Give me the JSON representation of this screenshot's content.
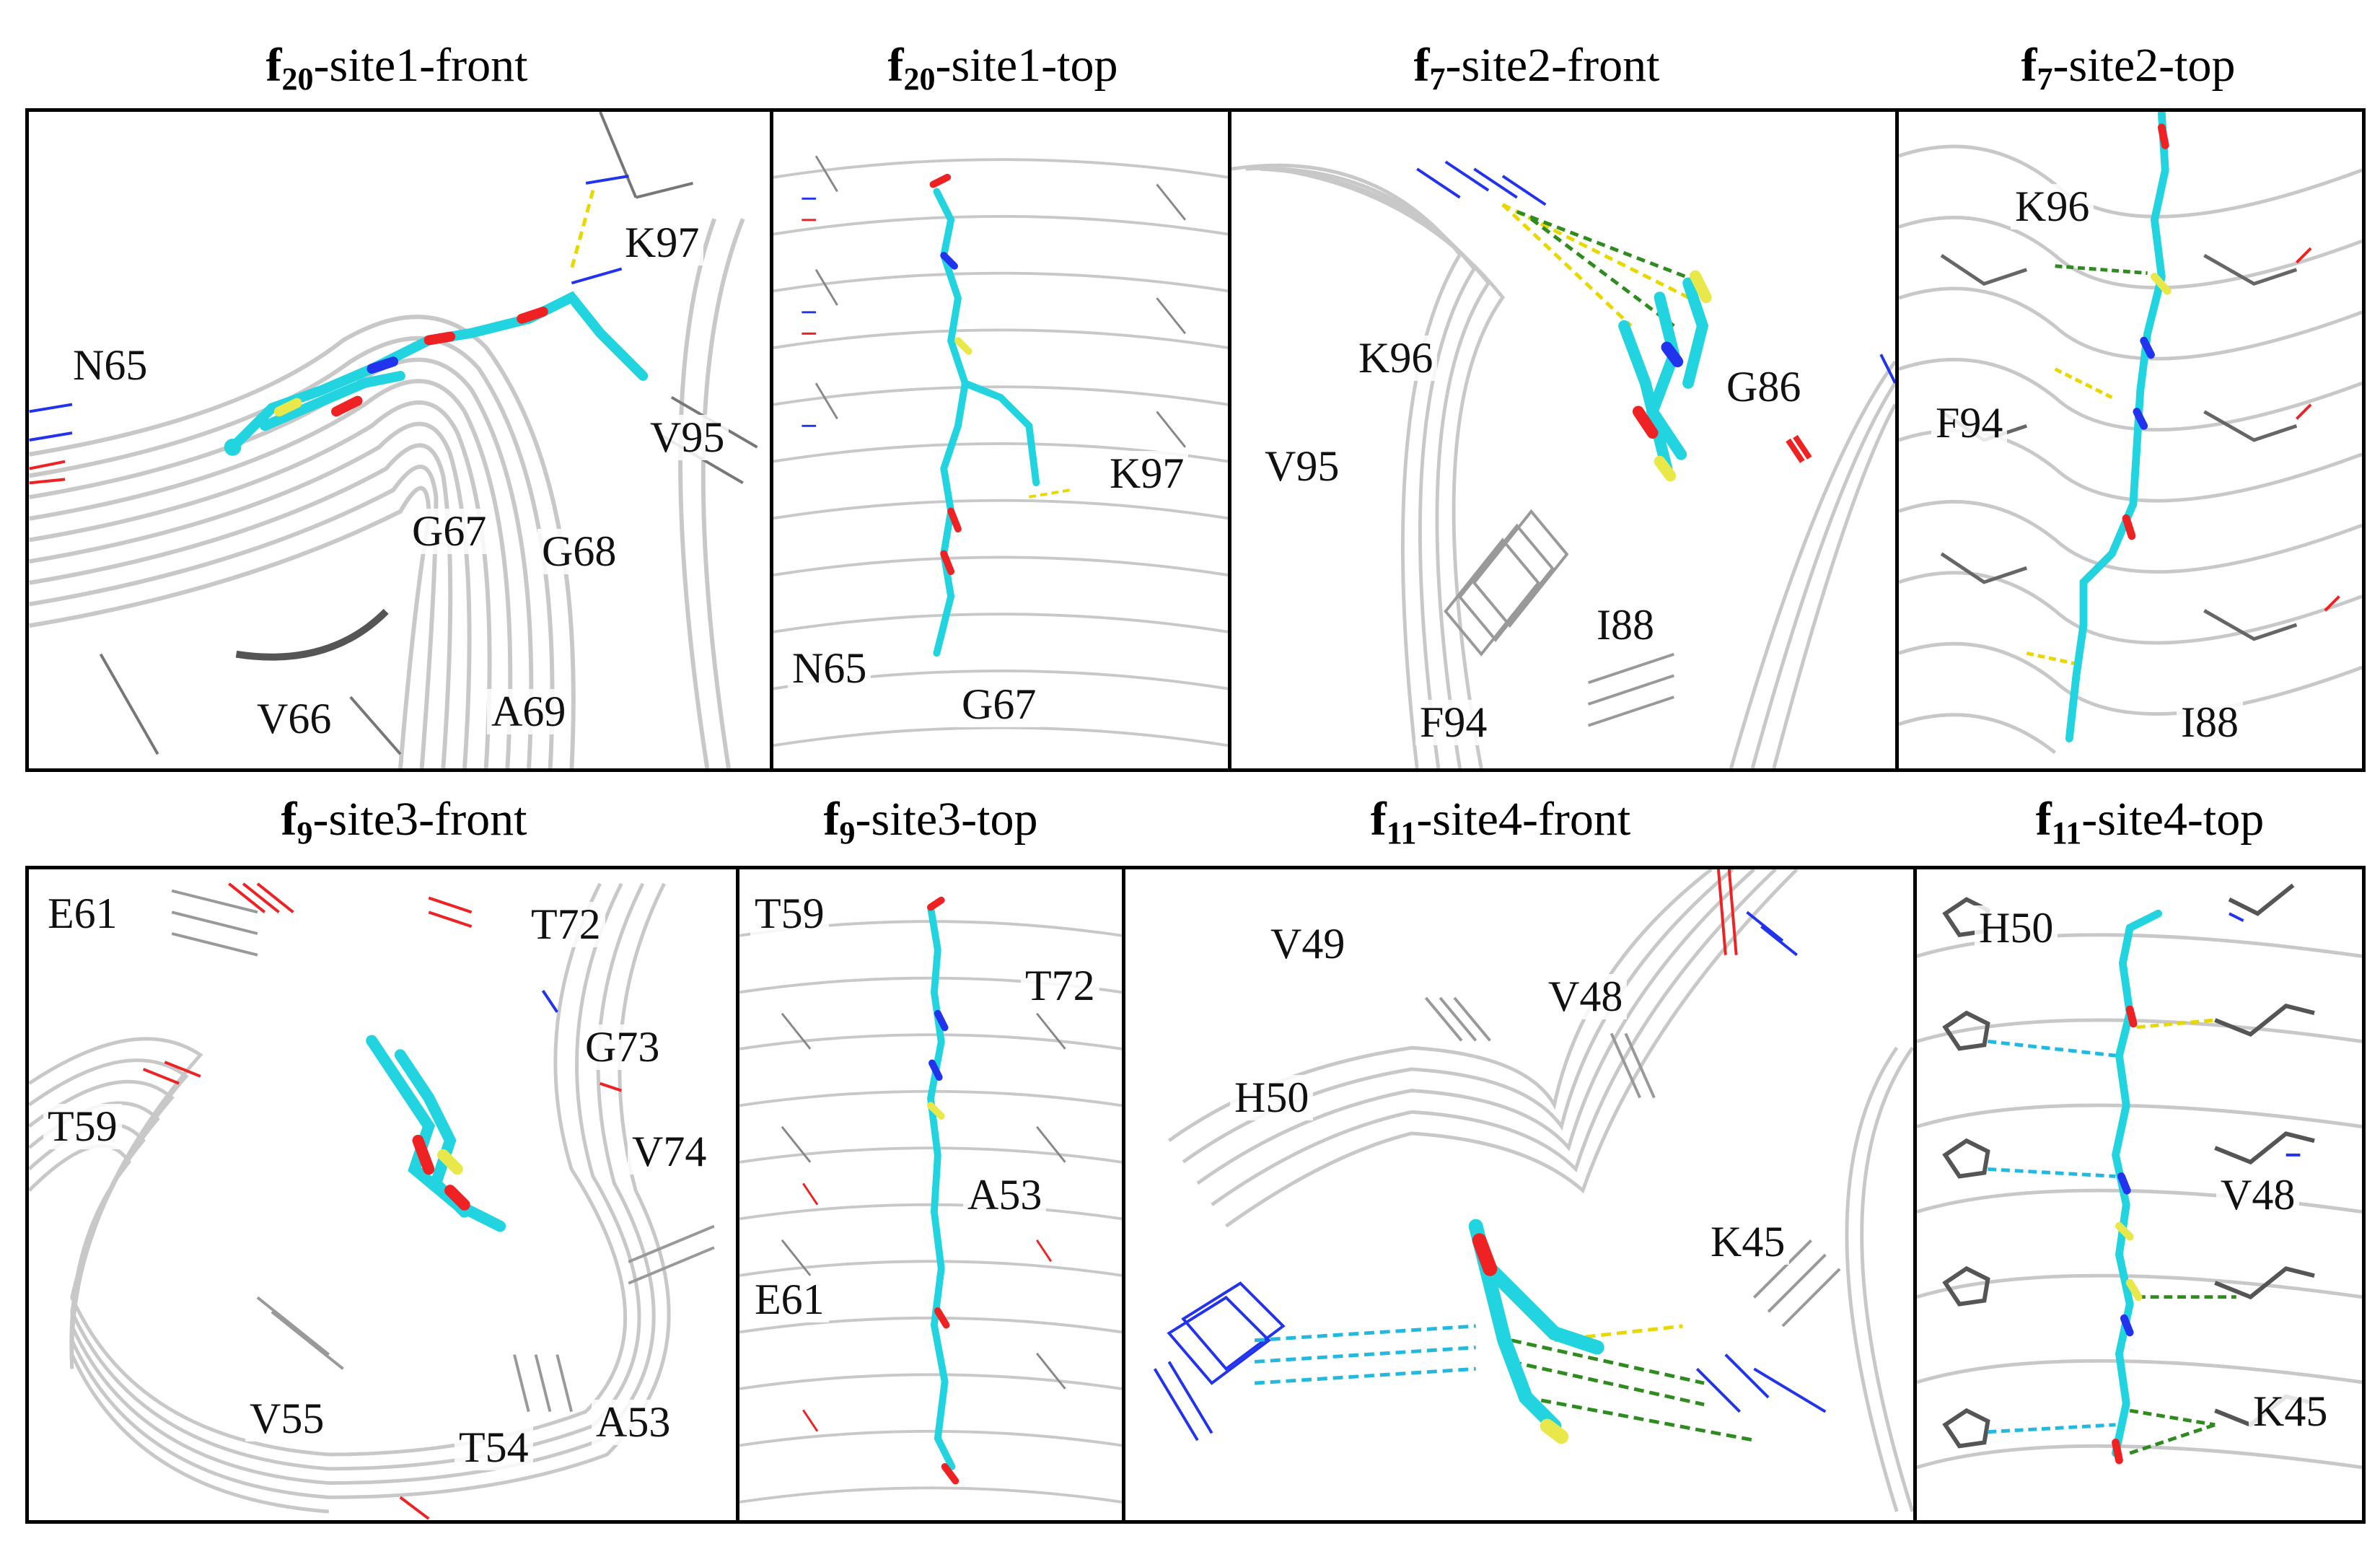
{
  "figure": {
    "panels": [
      {
        "id": "p1",
        "title_prefix": "f",
        "title_sub": "20",
        "title_suffix": "-site1-front",
        "labels": [
          "K97",
          "N65",
          "V95",
          "G67",
          "G68",
          "V66",
          "A69"
        ]
      },
      {
        "id": "p2",
        "title_prefix": "f",
        "title_sub": "20",
        "title_suffix": "-site1-top",
        "labels": [
          "K97",
          "N65",
          "G67"
        ]
      },
      {
        "id": "p3",
        "title_prefix": "f",
        "title_sub": "7",
        "title_suffix": "-site2-front",
        "labels": [
          "K96",
          "G86",
          "V95",
          "I88",
          "F94"
        ]
      },
      {
        "id": "p4",
        "title_prefix": "f",
        "title_sub": "7",
        "title_suffix": "-site2-top",
        "labels": [
          "K96",
          "F94",
          "I88"
        ]
      },
      {
        "id": "p5",
        "title_prefix": "f",
        "title_sub": "9",
        "title_suffix": "-site3-front",
        "labels": [
          "E61",
          "T72",
          "G73",
          "T59",
          "V74",
          "V55",
          "T54",
          "A53"
        ]
      },
      {
        "id": "p6",
        "title_prefix": "f",
        "title_sub": "9",
        "title_suffix": "-site3-top",
        "labels": [
          "T59",
          "T72",
          "A53",
          "E61"
        ]
      },
      {
        "id": "p7",
        "title_prefix": "f",
        "title_sub": "11",
        "title_suffix": "-site4-front",
        "labels": [
          "V49",
          "V48",
          "H50",
          "K45"
        ]
      },
      {
        "id": "p8",
        "title_prefix": "f",
        "title_sub": "11",
        "title_suffix": "-site4-top",
        "labels": [
          "H50",
          "V48",
          "K45"
        ]
      }
    ],
    "colors": {
      "ligand": "#22d3e0",
      "oxygen": "#ee2222",
      "sulfur": "#e8e84a",
      "nitrogen": "#2233ee",
      "fibril": "#c8c8c8",
      "sidechain": "#777777",
      "hbond_yellow": "#e8d800",
      "contact_green": "#2e8b1e",
      "pi_cyan": "#22b8e0"
    }
  }
}
